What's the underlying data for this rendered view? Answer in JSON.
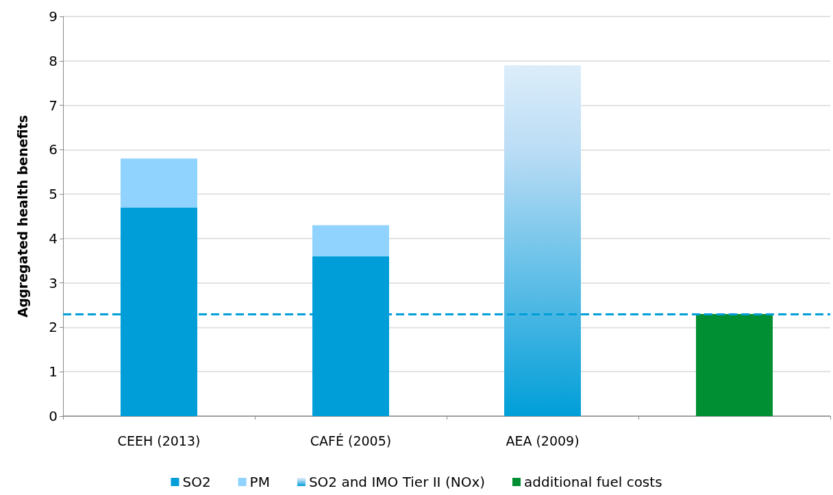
{
  "chart_data": {
    "type": "bar",
    "ylabel": "Aggregated health benefits",
    "categories": [
      "CEEH (2013)",
      "CAFÉ (2005)",
      "AEA (2009)",
      null
    ],
    "stacked": true,
    "ylim": [
      0,
      9
    ],
    "yticks": [
      0,
      1,
      2,
      3,
      4,
      5,
      6,
      7,
      8,
      9
    ],
    "grid": "y",
    "legend": "bottom",
    "series": [
      {
        "name": "SO2",
        "color": "#009ed8",
        "values": [
          4.7,
          3.6,
          null,
          null
        ]
      },
      {
        "name": "PM",
        "color": "#8fd3fe",
        "values": [
          1.1,
          0.7,
          null,
          null
        ]
      },
      {
        "name": "SO2 and IMO Tier II (NOx)",
        "color": "#009ed8",
        "values": [
          null,
          null,
          7.9,
          null
        ]
      },
      {
        "name": "additional fuel costs",
        "color": "#008f32",
        "values": [
          null,
          null,
          null,
          2.3
        ]
      }
    ],
    "ref_lines": [
      {
        "axis": "y",
        "value": 2.3,
        "color": "#009ed8",
        "line_style": "dashed"
      }
    ]
  }
}
